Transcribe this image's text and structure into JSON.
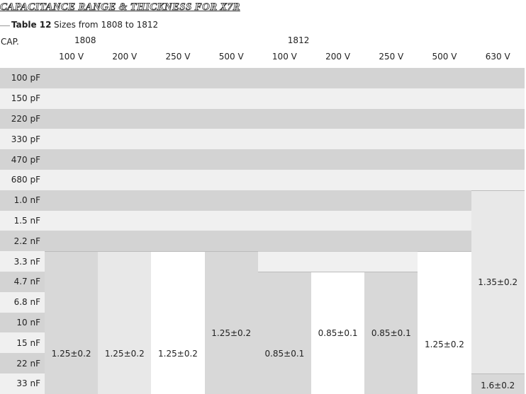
{
  "header": {
    "title": "CAPACITANCE RANGE & THICKNESS FOR X7R",
    "table_number": "Table 12",
    "caption": "Sizes from 1808 to 1812"
  },
  "table": {
    "cap_label": "CAP.",
    "groups": [
      "1808",
      "1812"
    ],
    "voltages": [
      "100 V",
      "200 V",
      "250 V",
      "500 V",
      "100 V",
      "200 V",
      "250 V",
      "500 V",
      "630 V"
    ],
    "capacitances": [
      "100 pF",
      "150 pF",
      "220 pF",
      "330 pF",
      "470 pF",
      "680 pF",
      "1.0 nF",
      "1.5 nF",
      "2.2 nF",
      "3.3 nF",
      "4.7 nF",
      "6.8 nF",
      "10 nF",
      "15 nF",
      "22 nF",
      "33 nF"
    ],
    "blocks": [
      "1.25±0.2",
      "1.25±0.2",
      "1.25±0.2",
      "1.25±0.2",
      "0.85±0.1",
      "0.85±0.1",
      "0.85±0.1",
      "1.25±0.2",
      "1.35±0.2",
      "1.6±0.2"
    ]
  }
}
